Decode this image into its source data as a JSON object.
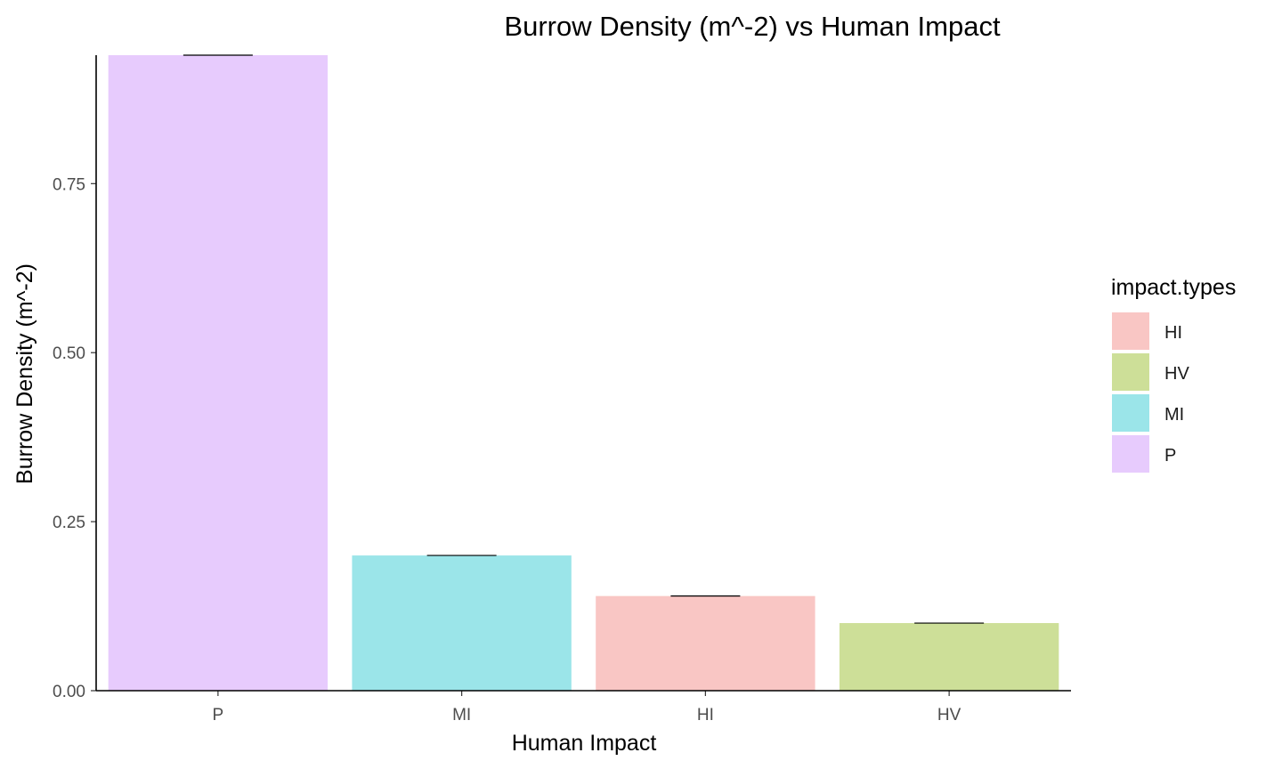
{
  "chart_data": {
    "type": "bar",
    "title": "Burrow Density (m^-2) vs Human Impact",
    "xlabel": "Human Impact",
    "ylabel": "Burrow Density (m^-2)",
    "categories": [
      "P",
      "MI",
      "HI",
      "HV"
    ],
    "values": [
      0.94,
      0.2,
      0.14,
      0.1
    ],
    "error_upper": [
      0.94,
      0.2,
      0.14,
      0.1
    ],
    "ylim": [
      0,
      0.94
    ],
    "yticks": [
      0,
      0.25,
      0.5,
      0.75
    ],
    "ytick_labels": [
      "0.00",
      "0.25",
      "0.50",
      "0.75"
    ],
    "bar_colors": {
      "P": "#E7CBFD",
      "MI": "#9BE5E9",
      "HI": "#F9C6C4",
      "HV": "#CDDF98"
    },
    "legend": {
      "title": "impact.types",
      "position": "right",
      "items": [
        {
          "label": "HI",
          "color": "#F9C6C4"
        },
        {
          "label": "HV",
          "color": "#CDDF98"
        },
        {
          "label": "MI",
          "color": "#9BE5E9"
        },
        {
          "label": "P",
          "color": "#E7CBFD"
        }
      ]
    },
    "grid": false
  }
}
